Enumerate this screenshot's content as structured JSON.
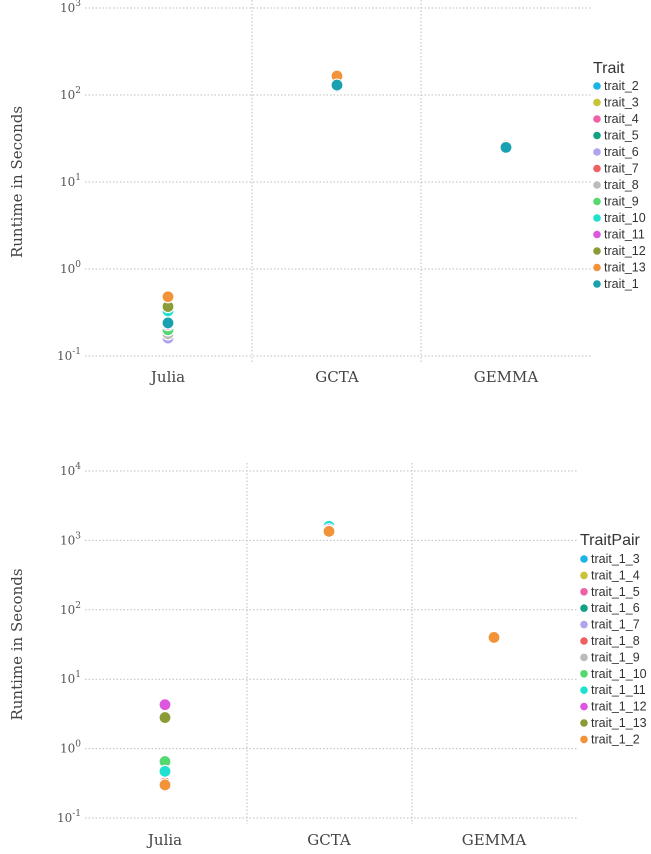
{
  "chart_data": [
    {
      "type": "scatter",
      "ylabel": "Runtime in Seconds",
      "yscale": "log10",
      "ylim": [
        0.1,
        1000
      ],
      "ytick_labels": [
        {
          "value": 0.1,
          "base": "10",
          "exp": "-1"
        },
        {
          "value": 1,
          "base": "10",
          "exp": "0"
        },
        {
          "value": 10,
          "base": "10",
          "exp": "1"
        },
        {
          "value": 100,
          "base": "10",
          "exp": "2"
        },
        {
          "value": 1000,
          "base": "10",
          "exp": "3"
        }
      ],
      "categories": [
        "Julia",
        "GCTA",
        "GEMMA"
      ],
      "grid": true,
      "legend_title": "Trait",
      "legend_position": "right",
      "series": [
        {
          "name": "trait_2",
          "color": "#1ab4e8",
          "values": [
            0.2,
            120,
            25
          ]
        },
        {
          "name": "trait_3",
          "color": "#c9c33a",
          "values": [
            0.21,
            125,
            25
          ]
        },
        {
          "name": "trait_4",
          "color": "#ef62a8",
          "values": [
            0.22,
            130,
            25
          ]
        },
        {
          "name": "trait_5",
          "color": "#13a085",
          "values": [
            0.2,
            128,
            25
          ]
        },
        {
          "name": "trait_6",
          "color": "#b3a3ee",
          "values": [
            0.16,
            120,
            25
          ]
        },
        {
          "name": "trait_7",
          "color": "#ef6060",
          "values": [
            0.19,
            122,
            25
          ]
        },
        {
          "name": "trait_8",
          "color": "#bbbbbb",
          "values": [
            0.18,
            125,
            25
          ]
        },
        {
          "name": "trait_9",
          "color": "#55d86f",
          "values": [
            0.2,
            135,
            25
          ]
        },
        {
          "name": "trait_10",
          "color": "#20e0d0",
          "values": [
            0.33,
            150,
            25
          ]
        },
        {
          "name": "trait_11",
          "color": "#dc56de",
          "values": [
            0.23,
            140,
            25
          ]
        },
        {
          "name": "trait_12",
          "color": "#8a9b38",
          "values": [
            0.37,
            155,
            25
          ]
        },
        {
          "name": "trait_13",
          "color": "#f39339",
          "values": [
            0.48,
            165,
            26
          ]
        },
        {
          "name": "trait_1",
          "color": "#17a1b1",
          "values": [
            0.24,
            130,
            25
          ]
        }
      ]
    },
    {
      "type": "scatter",
      "ylabel": "Runtime in Seconds",
      "yscale": "log10",
      "ylim": [
        0.1,
        10000
      ],
      "ytick_labels": [
        {
          "value": 0.1,
          "base": "10",
          "exp": "-1"
        },
        {
          "value": 1,
          "base": "10",
          "exp": "0"
        },
        {
          "value": 10,
          "base": "10",
          "exp": "1"
        },
        {
          "value": 100,
          "base": "10",
          "exp": "2"
        },
        {
          "value": 1000,
          "base": "10",
          "exp": "3"
        },
        {
          "value": 10000,
          "base": "10",
          "exp": "4"
        }
      ],
      "categories": [
        "Julia",
        "GCTA",
        "GEMMA"
      ],
      "grid": true,
      "legend_title": "TraitPair",
      "legend_position": "right",
      "series": [
        {
          "name": "trait_1_3",
          "color": "#1ab4e8",
          "values": [
            0.28,
            1400,
            40
          ]
        },
        {
          "name": "trait_1_4",
          "color": "#c9c33a",
          "values": [
            0.3,
            1350,
            40
          ]
        },
        {
          "name": "trait_1_5",
          "color": "#ef62a8",
          "values": [
            0.31,
            1380,
            40
          ]
        },
        {
          "name": "trait_1_6",
          "color": "#13a085",
          "values": [
            0.3,
            1300,
            40
          ]
        },
        {
          "name": "trait_1_7",
          "color": "#b3a3ee",
          "values": [
            0.3,
            1320,
            40
          ]
        },
        {
          "name": "trait_1_8",
          "color": "#ef6060",
          "values": [
            0.32,
            1340,
            40
          ]
        },
        {
          "name": "trait_1_9",
          "color": "#bbbbbb",
          "values": [
            0.29,
            1360,
            40
          ]
        },
        {
          "name": "trait_1_10",
          "color": "#55d86f",
          "values": [
            0.65,
            1450,
            40
          ]
        },
        {
          "name": "trait_1_11",
          "color": "#20e0d0",
          "values": [
            0.47,
            1600,
            40
          ]
        },
        {
          "name": "trait_1_12",
          "color": "#dc56de",
          "values": [
            4.3,
            1420,
            40
          ]
        },
        {
          "name": "trait_1_13",
          "color": "#8a9b38",
          "values": [
            2.8,
            1330,
            40
          ]
        },
        {
          "name": "trait_1_2",
          "color": "#f39339",
          "values": [
            0.3,
            1350,
            40
          ]
        }
      ]
    }
  ]
}
